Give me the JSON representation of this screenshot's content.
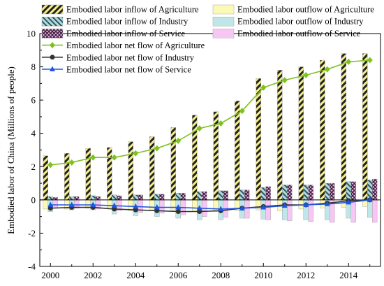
{
  "chart_data": {
    "type": "bar",
    "xlabel": "",
    "ylabel": "Embodied labor of China (Millions of people)",
    "ylim": [
      -4,
      10
    ],
    "yticks": [
      -4,
      -2,
      0,
      2,
      4,
      6,
      8,
      10
    ],
    "x": [
      2000,
      2001,
      2002,
      2003,
      2004,
      2005,
      2006,
      2007,
      2008,
      2009,
      2010,
      2011,
      2012,
      2013,
      2014,
      2015
    ],
    "xticks": [
      2000,
      2002,
      2004,
      2006,
      2008,
      2010,
      2012,
      2014
    ],
    "grid": false,
    "legend_position": "top",
    "legend": [
      {
        "label": "Embodied labor inflow of Agriculture",
        "kind": "bar",
        "pattern": "hatch-agri-in"
      },
      {
        "label": "Embodied labor outflow of Agriculture",
        "kind": "bar",
        "pattern": "solid-agri-out"
      },
      {
        "label": "Embodied labor inflow of Industry",
        "kind": "bar",
        "pattern": "hatch-ind-in"
      },
      {
        "label": "Embodied labor outflow of Industry",
        "kind": "bar",
        "pattern": "solid-ind-out"
      },
      {
        "label": "Embodied labor inflow of Service",
        "kind": "bar",
        "pattern": "hatch-ser-in"
      },
      {
        "label": "Embodied labor outflow of Service",
        "kind": "bar",
        "pattern": "solid-ser-out"
      },
      {
        "label": "Embodied labor net flow of Agriculture",
        "kind": "line",
        "color": "#7dc21e",
        "marker": "diamond"
      },
      {
        "label": "Embodied labor net flow of Industry",
        "kind": "line",
        "color": "#333333",
        "marker": "circle"
      },
      {
        "label": "Embodied labor net flow of Service",
        "kind": "line",
        "color": "#2255dd",
        "marker": "triangle"
      }
    ],
    "bar_series": [
      {
        "name": "Embodied labor inflow of Agriculture",
        "pattern": "hatch-agri-in",
        "values": [
          2.65,
          2.8,
          3.1,
          3.15,
          3.5,
          3.8,
          4.35,
          5.1,
          5.3,
          5.95,
          7.3,
          7.8,
          8.0,
          8.4,
          8.8,
          8.8
        ]
      },
      {
        "name": "Embodied labor outflow of Agriculture",
        "pattern": "solid-agri-out",
        "values": [
          -0.55,
          -0.55,
          -0.5,
          -0.55,
          -0.65,
          -0.6,
          -0.6,
          -0.7,
          -0.7,
          -0.65,
          -0.6,
          -0.65,
          -0.55,
          -0.5,
          -0.45,
          -0.4
        ]
      },
      {
        "name": "Embodied labor inflow of Industry",
        "pattern": "hatch-ind-in",
        "values": [
          0.2,
          0.2,
          0.25,
          0.3,
          0.3,
          0.35,
          0.4,
          0.5,
          0.55,
          0.6,
          0.75,
          0.9,
          0.9,
          1.0,
          1.1,
          1.2
        ]
      },
      {
        "name": "Embodied labor outflow of Industry",
        "pattern": "solid-ind-out",
        "values": [
          -0.7,
          -0.6,
          -0.6,
          -0.85,
          -0.95,
          -1.0,
          -1.1,
          -1.2,
          -1.2,
          -1.1,
          -1.15,
          -1.2,
          -1.2,
          -1.2,
          -1.1,
          -1.05
        ]
      },
      {
        "name": "Embodied labor inflow of Service",
        "pattern": "hatch-ser-in",
        "values": [
          0.15,
          0.2,
          0.2,
          0.25,
          0.3,
          0.35,
          0.4,
          0.5,
          0.55,
          0.6,
          0.8,
          0.9,
          0.9,
          1.0,
          1.1,
          1.25
        ]
      },
      {
        "name": "Embodied labor outflow of Service",
        "pattern": "solid-ser-out",
        "values": [
          -0.5,
          -0.5,
          -0.55,
          -0.65,
          -0.75,
          -0.8,
          -0.9,
          -1.0,
          -1.05,
          -1.1,
          -1.2,
          -1.25,
          -1.3,
          -1.35,
          -1.35,
          -1.35
        ]
      }
    ],
    "line_series": [
      {
        "name": "Embodied labor net flow of Agriculture",
        "color": "#7dc21e",
        "marker": "diamond",
        "values": [
          2.1,
          2.25,
          2.55,
          2.55,
          2.8,
          3.1,
          3.55,
          4.3,
          4.6,
          5.35,
          6.75,
          7.2,
          7.5,
          7.85,
          8.3,
          8.4
        ]
      },
      {
        "name": "Embodied labor net flow of Industry",
        "color": "#333333",
        "marker": "circle",
        "values": [
          -0.5,
          -0.45,
          -0.45,
          -0.55,
          -0.6,
          -0.65,
          -0.7,
          -0.7,
          -0.65,
          -0.5,
          -0.4,
          -0.3,
          -0.3,
          -0.2,
          -0.05,
          0.0
        ]
      },
      {
        "name": "Embodied labor net flow of Service",
        "color": "#2255dd",
        "marker": "triangle",
        "values": [
          -0.3,
          -0.3,
          -0.3,
          -0.35,
          -0.4,
          -0.45,
          -0.45,
          -0.5,
          -0.55,
          -0.5,
          -0.45,
          -0.35,
          -0.3,
          -0.25,
          -0.15,
          0.0
        ]
      }
    ]
  }
}
